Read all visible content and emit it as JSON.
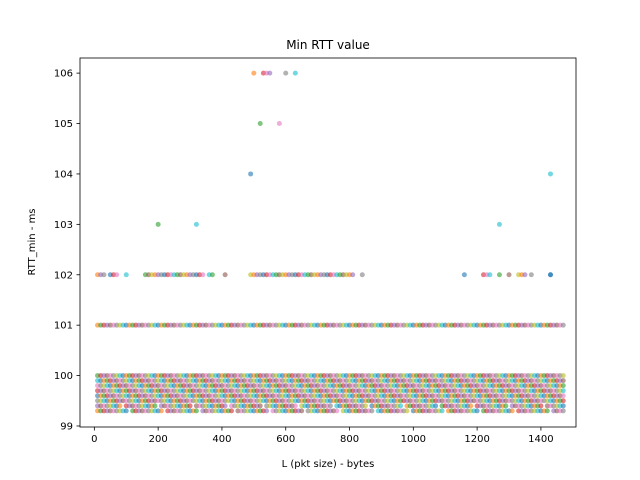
{
  "chart_data": {
    "type": "scatter",
    "title": "Min RTT value",
    "xlabel": "L (pkt size) - bytes",
    "ylabel": "RTT_min - ms",
    "xlim": [
      -45,
      1510
    ],
    "ylim": [
      98.98,
      106.3
    ],
    "xticks": [
      0,
      200,
      400,
      600,
      800,
      1000,
      1200,
      1400
    ],
    "yticks": [
      99,
      100,
      101,
      102,
      103,
      104,
      105,
      106
    ],
    "grid": false,
    "legend": "none",
    "marker_alpha": 0.6,
    "palette": [
      "#1f77b4",
      "#ff7f0e",
      "#2ca02c",
      "#d62728",
      "#9467bd",
      "#8c564b",
      "#e377c2",
      "#7f7f7f",
      "#bcbd22",
      "#17becf"
    ],
    "x_range": [
      10,
      1470
    ],
    "x_step": 10,
    "dense_levels": [
      99.3,
      99.4,
      99.5,
      99.6,
      99.7,
      99.8,
      99.9,
      100.0
    ],
    "baseline_level": 101.0,
    "level_102_x": [
      10,
      20,
      30,
      50,
      60,
      70,
      100,
      160,
      170,
      180,
      190,
      200,
      210,
      220,
      230,
      240,
      250,
      260,
      270,
      280,
      290,
      300,
      310,
      320,
      330,
      340,
      360,
      370,
      410,
      490,
      500,
      510,
      520,
      530,
      540,
      550,
      560,
      570,
      580,
      590,
      600,
      610,
      620,
      630,
      640,
      650,
      660,
      670,
      680,
      690,
      700,
      710,
      720,
      730,
      740,
      750,
      760,
      770,
      780,
      790,
      800,
      810,
      840,
      1160,
      1220,
      1230,
      1240,
      1270,
      1300,
      1330,
      1340,
      1350,
      1370,
      1430
    ],
    "outliers": [
      {
        "x": 490,
        "y": 104,
        "color": "#1f77b4"
      },
      {
        "x": 200,
        "y": 103,
        "color": "#2ca02c"
      },
      {
        "x": 320,
        "y": 103,
        "color": "#17becf"
      },
      {
        "x": 1270,
        "y": 103,
        "color": "#17becf"
      },
      {
        "x": 1430,
        "y": 104,
        "color": "#17becf"
      },
      {
        "x": 1430,
        "y": 102,
        "color": "#1f77b4"
      },
      {
        "x": 520,
        "y": 105,
        "color": "#2ca02c"
      },
      {
        "x": 580,
        "y": 105,
        "color": "#e377c2"
      },
      {
        "x": 500,
        "y": 106,
        "color": "#ff7f0e"
      },
      {
        "x": 530,
        "y": 106,
        "color": "#d62728"
      },
      {
        "x": 540,
        "y": 106,
        "color": "#e377c2"
      },
      {
        "x": 550,
        "y": 106,
        "color": "#9467bd"
      },
      {
        "x": 600,
        "y": 106,
        "color": "#7f7f7f"
      },
      {
        "x": 630,
        "y": 106,
        "color": "#17becf"
      }
    ]
  }
}
